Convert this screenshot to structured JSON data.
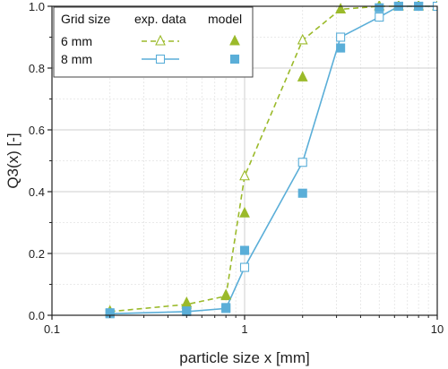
{
  "chart_data": {
    "type": "line",
    "xlabel": "particle size x  [mm]",
    "ylabel": "Q3(x) [-]",
    "xscale": "log",
    "xlim": [
      0.1,
      10
    ],
    "ylim": [
      0,
      1.0
    ],
    "x_ticks": [
      0.1,
      1,
      10
    ],
    "x_tick_labels": [
      "0.1",
      "1",
      "10"
    ],
    "y_ticks": [
      0,
      0.2,
      0.4,
      0.6,
      0.8,
      1.0
    ],
    "y_tick_labels": [
      "0.0",
      "0.2",
      "0.4",
      "0.6",
      "0.8",
      "1.0"
    ],
    "grid": true,
    "legend": {
      "placement": "top-left",
      "headers": [
        "Grid size",
        "exp. data",
        "model"
      ],
      "rows": [
        "6 mm",
        "8 mm"
      ]
    },
    "series": [
      {
        "name": "6 mm",
        "kind": "exp. data",
        "color": "#9bba2a",
        "line": "dashed",
        "marker": "open-triangle",
        "x": [
          0.2,
          0.5,
          0.8,
          1.0,
          2.0,
          3.15,
          5.0,
          6.3,
          8.0,
          10.0
        ],
        "y": [
          0.012,
          0.035,
          0.062,
          0.45,
          0.89,
          0.99,
          1.0,
          1.0,
          1.0,
          1.0
        ]
      },
      {
        "name": "8 mm",
        "kind": "exp. data",
        "color": "#5aaed8",
        "line": "solid",
        "marker": "open-square",
        "x": [
          0.2,
          0.5,
          0.8,
          1.0,
          2.0,
          3.15,
          5.0,
          6.3,
          8.0,
          10.0
        ],
        "y": [
          0.005,
          0.012,
          0.022,
          0.155,
          0.495,
          0.9,
          0.965,
          1.0,
          1.0,
          1.0
        ]
      },
      {
        "name": "6 mm",
        "kind": "model",
        "color": "#9bba2a",
        "marker": "filled-triangle",
        "x": [
          0.2,
          0.5,
          0.8,
          1.0,
          2.0,
          3.15,
          5.0,
          6.3,
          8.0
        ],
        "y": [
          0.012,
          0.04,
          0.065,
          0.33,
          0.77,
          0.99,
          1.0,
          1.0,
          1.0
        ]
      },
      {
        "name": "8 mm",
        "kind": "model",
        "color": "#5aaed8",
        "marker": "filled-square",
        "x": [
          0.2,
          0.5,
          0.8,
          1.0,
          2.0,
          3.15,
          5.0,
          6.3,
          8.0
        ],
        "y": [
          0.008,
          0.014,
          0.025,
          0.21,
          0.395,
          0.865,
          0.995,
          1.0,
          1.0
        ]
      }
    ]
  }
}
